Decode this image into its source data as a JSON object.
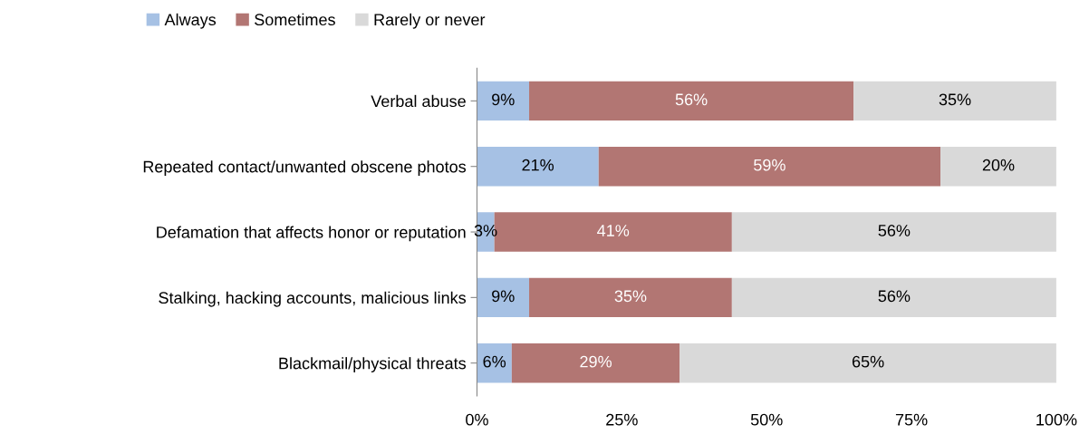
{
  "chart_data": {
    "type": "bar",
    "orientation": "horizontal",
    "stacked": true,
    "categories": [
      "Verbal abuse",
      "Repeated contact/unwanted obscene photos",
      "Defamation that affects honor or reputation",
      "Stalking, hacking accounts, malicious links",
      "Blackmail/physical threats"
    ],
    "series": [
      {
        "name": "Always",
        "color": "#a6c1e4",
        "values": [
          9,
          21,
          3,
          9,
          6
        ],
        "value_labels": [
          "9%",
          "21%",
          "3%",
          "9%",
          "6%"
        ]
      },
      {
        "name": "Sometimes",
        "color": "#b27673",
        "values": [
          56,
          59,
          41,
          35,
          29
        ],
        "value_labels": [
          "56%",
          "59%",
          "41%",
          "35%",
          "29%"
        ]
      },
      {
        "name": "Rarely or never",
        "color": "#d9d9d9",
        "values": [
          35,
          20,
          56,
          56,
          65
        ],
        "value_labels": [
          "35%",
          "20%",
          "56%",
          "56%",
          "65%"
        ]
      }
    ],
    "xlim": [
      0,
      100
    ],
    "xticks": [
      {
        "value": 0,
        "label": "0%"
      },
      {
        "value": 25,
        "label": "25%"
      },
      {
        "value": 50,
        "label": "50%"
      },
      {
        "value": 75,
        "label": "75%"
      },
      {
        "value": 100,
        "label": "100%"
      }
    ],
    "grid": false,
    "legend": "top"
  }
}
